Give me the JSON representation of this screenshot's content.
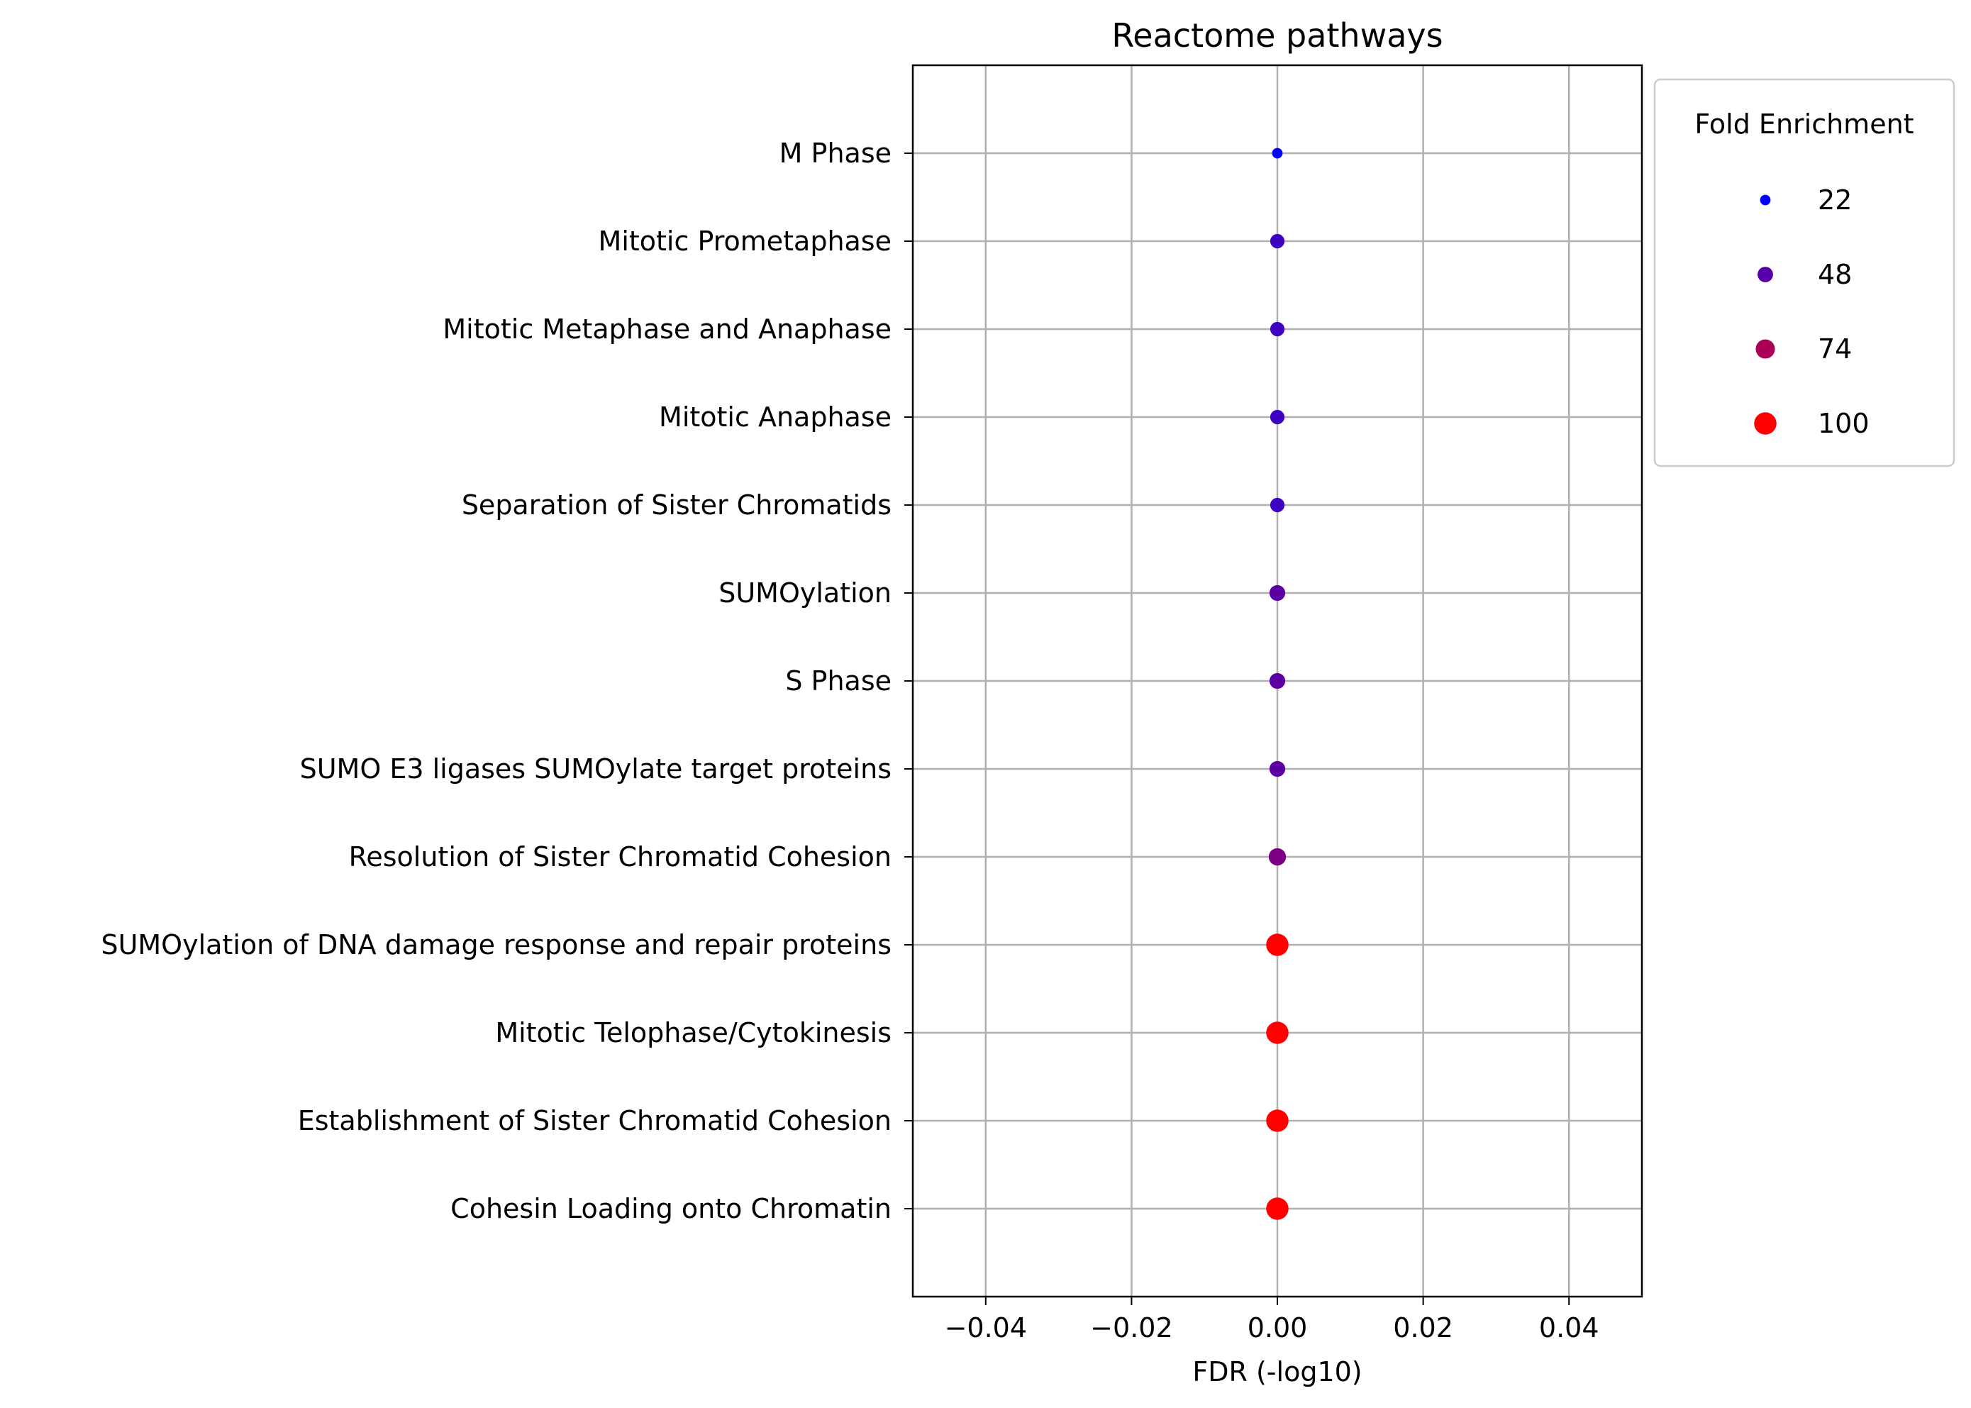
{
  "chart_data": {
    "type": "scatter",
    "title": "Reactome pathways",
    "xlabel": "FDR (-log10)",
    "ylabel": "",
    "xlim": [
      -0.05,
      0.05
    ],
    "xticks": [
      -0.04,
      -0.02,
      0.0,
      0.02,
      0.04
    ],
    "xtick_labels": [
      "−0.04",
      "−0.02",
      "0.00",
      "0.02",
      "0.04"
    ],
    "grid": true,
    "size_encoding": "Fold Enrichment",
    "color_range": [
      "#0000ff",
      "#ff0000"
    ],
    "points": [
      {
        "label": "M Phase",
        "x": 0.0,
        "fold_enrichment": 22
      },
      {
        "label": "Mitotic Prometaphase",
        "x": 0.0,
        "fold_enrichment": 41
      },
      {
        "label": "Mitotic Metaphase and Anaphase",
        "x": 0.0,
        "fold_enrichment": 41
      },
      {
        "label": "Mitotic Anaphase",
        "x": 0.0,
        "fold_enrichment": 41
      },
      {
        "label": "Separation of Sister Chromatids",
        "x": 0.0,
        "fold_enrichment": 41
      },
      {
        "label": "SUMOylation",
        "x": 0.0,
        "fold_enrichment": 50
      },
      {
        "label": "S Phase",
        "x": 0.0,
        "fold_enrichment": 50
      },
      {
        "label": "SUMO E3 ligases SUMOylate target proteins",
        "x": 0.0,
        "fold_enrichment": 50
      },
      {
        "label": "Resolution of Sister Chromatid Cohesion",
        "x": 0.0,
        "fold_enrichment": 60
      },
      {
        "label": "SUMOylation of DNA damage response and repair proteins",
        "x": 0.0,
        "fold_enrichment": 100
      },
      {
        "label": "Mitotic Telophase/Cytokinesis",
        "x": 0.0,
        "fold_enrichment": 100
      },
      {
        "label": "Establishment of Sister Chromatid Cohesion",
        "x": 0.0,
        "fold_enrichment": 100
      },
      {
        "label": "Cohesin Loading onto Chromatin",
        "x": 0.0,
        "fold_enrichment": 100
      }
    ],
    "legend": {
      "title": "Fold Enrichment",
      "placement": "outside-top-right",
      "entries": [
        {
          "label": "22",
          "value": 22
        },
        {
          "label": "48",
          "value": 48
        },
        {
          "label": "74",
          "value": 74
        },
        {
          "label": "100",
          "value": 100
        }
      ]
    }
  }
}
